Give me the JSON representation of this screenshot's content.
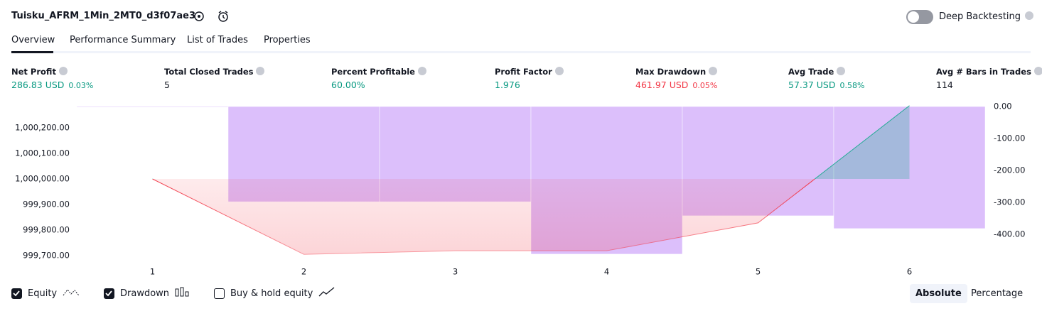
{
  "header": {
    "title": "Tuisku_AFRM_1Min_2MT0_d3f07ae3",
    "deep_backtesting": "Deep Backtesting"
  },
  "tabs": [
    "Overview",
    "Performance Summary",
    "List of Trades",
    "Properties"
  ],
  "stats": [
    {
      "label": "Net Profit",
      "value": "286.83 USD",
      "pct": "0.03%",
      "color": "#089981"
    },
    {
      "label": "Total Closed Trades",
      "value": "5",
      "color": "#131722"
    },
    {
      "label": "Percent Profitable",
      "value": "60.00%",
      "color": "#089981"
    },
    {
      "label": "Profit Factor",
      "value": "1.976",
      "color": "#089981"
    },
    {
      "label": "Max Drawdown",
      "value": "461.97 USD",
      "pct": "0.05%",
      "color": "#f23645"
    },
    {
      "label": "Avg Trade",
      "value": "57.37 USD",
      "pct": "0.58%",
      "color": "#089981"
    },
    {
      "label": "Avg # Bars in Trades",
      "value": "114",
      "color": "#131722"
    }
  ],
  "chart_data": {
    "type": "equity",
    "categories": [
      "1",
      "2",
      "3",
      "4",
      "5",
      "6"
    ],
    "series": [
      {
        "name": "Equity",
        "values": [
          1000000,
          999705,
          999719,
          999719,
          999828,
          1000286.83
        ],
        "color": "#f23645",
        "color_above": "#22ab94",
        "baseline": 1000000
      },
      {
        "name": "Drawdown",
        "values": [
          0,
          -298,
          -298,
          -461.97,
          -342,
          -382
        ],
        "color": "#d7b4fb",
        "axis": "y2"
      }
    ],
    "ylim": [
      999677.8,
      1000283.3
    ],
    "yticks": [
      {
        "value": 1000200,
        "label": "1,000,200.00"
      },
      {
        "value": 1000100,
        "label": "1,000,100.00"
      },
      {
        "value": 1000000,
        "label": "1,000,000.00"
      },
      {
        "value": 999900,
        "label": "999,900.00"
      },
      {
        "value": 999800,
        "label": "999,800.00"
      },
      {
        "value": 999700,
        "label": "999,700.00"
      }
    ],
    "y2lim": [
      -484.4,
      0
    ],
    "y2ticks": [
      {
        "value": 0,
        "label": "0.00"
      },
      {
        "value": -100,
        "label": "-100.00"
      },
      {
        "value": -200,
        "label": "-200.00"
      },
      {
        "value": -300,
        "label": "-300.00"
      },
      {
        "value": -400,
        "label": "-400.00"
      }
    ]
  },
  "footer": {
    "toggles": [
      {
        "label": "Equity",
        "checked": true
      },
      {
        "label": "Drawdown",
        "checked": true
      },
      {
        "label": "Buy & hold equity",
        "checked": false
      }
    ],
    "modes": [
      "Absolute",
      "Percentage"
    ]
  }
}
